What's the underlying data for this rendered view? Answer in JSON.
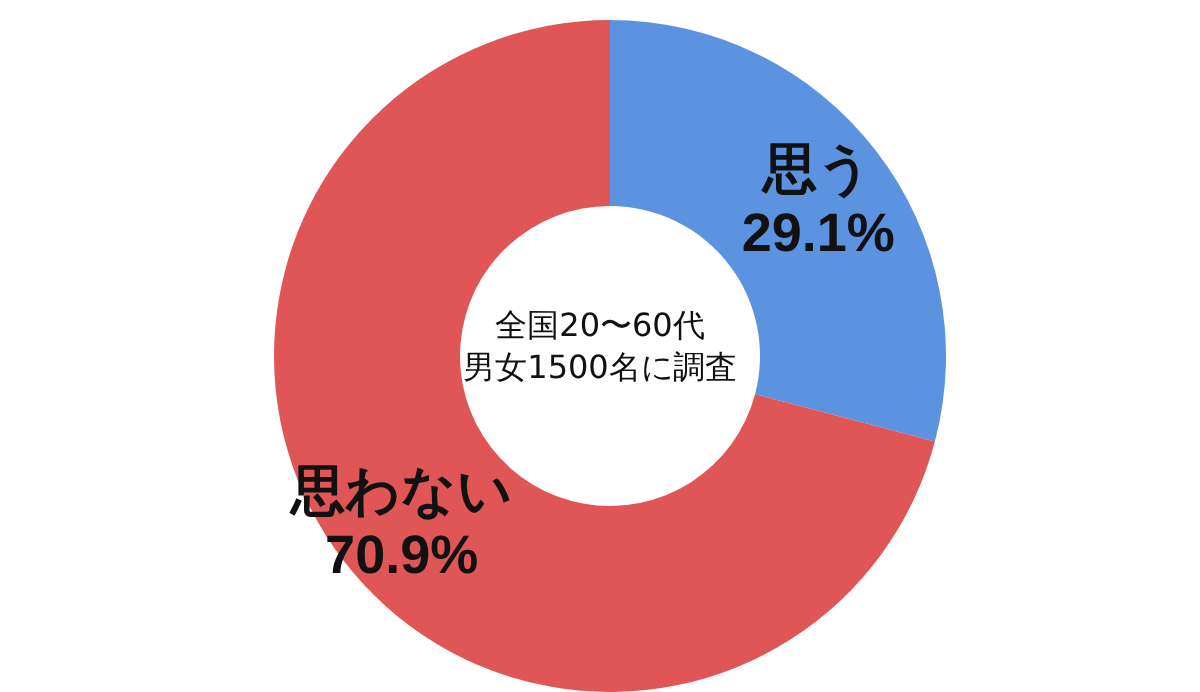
{
  "chart_data": {
    "type": "donut",
    "categories": [
      "思う",
      "思わない"
    ],
    "values": [
      29.1,
      70.9
    ],
    "colors": [
      "#5b93e0",
      "#e05555"
    ],
    "value_labels": [
      "29.1%",
      "70.9%"
    ],
    "annotations": [
      "全国20〜60代",
      "男女1500名に調査"
    ]
  }
}
